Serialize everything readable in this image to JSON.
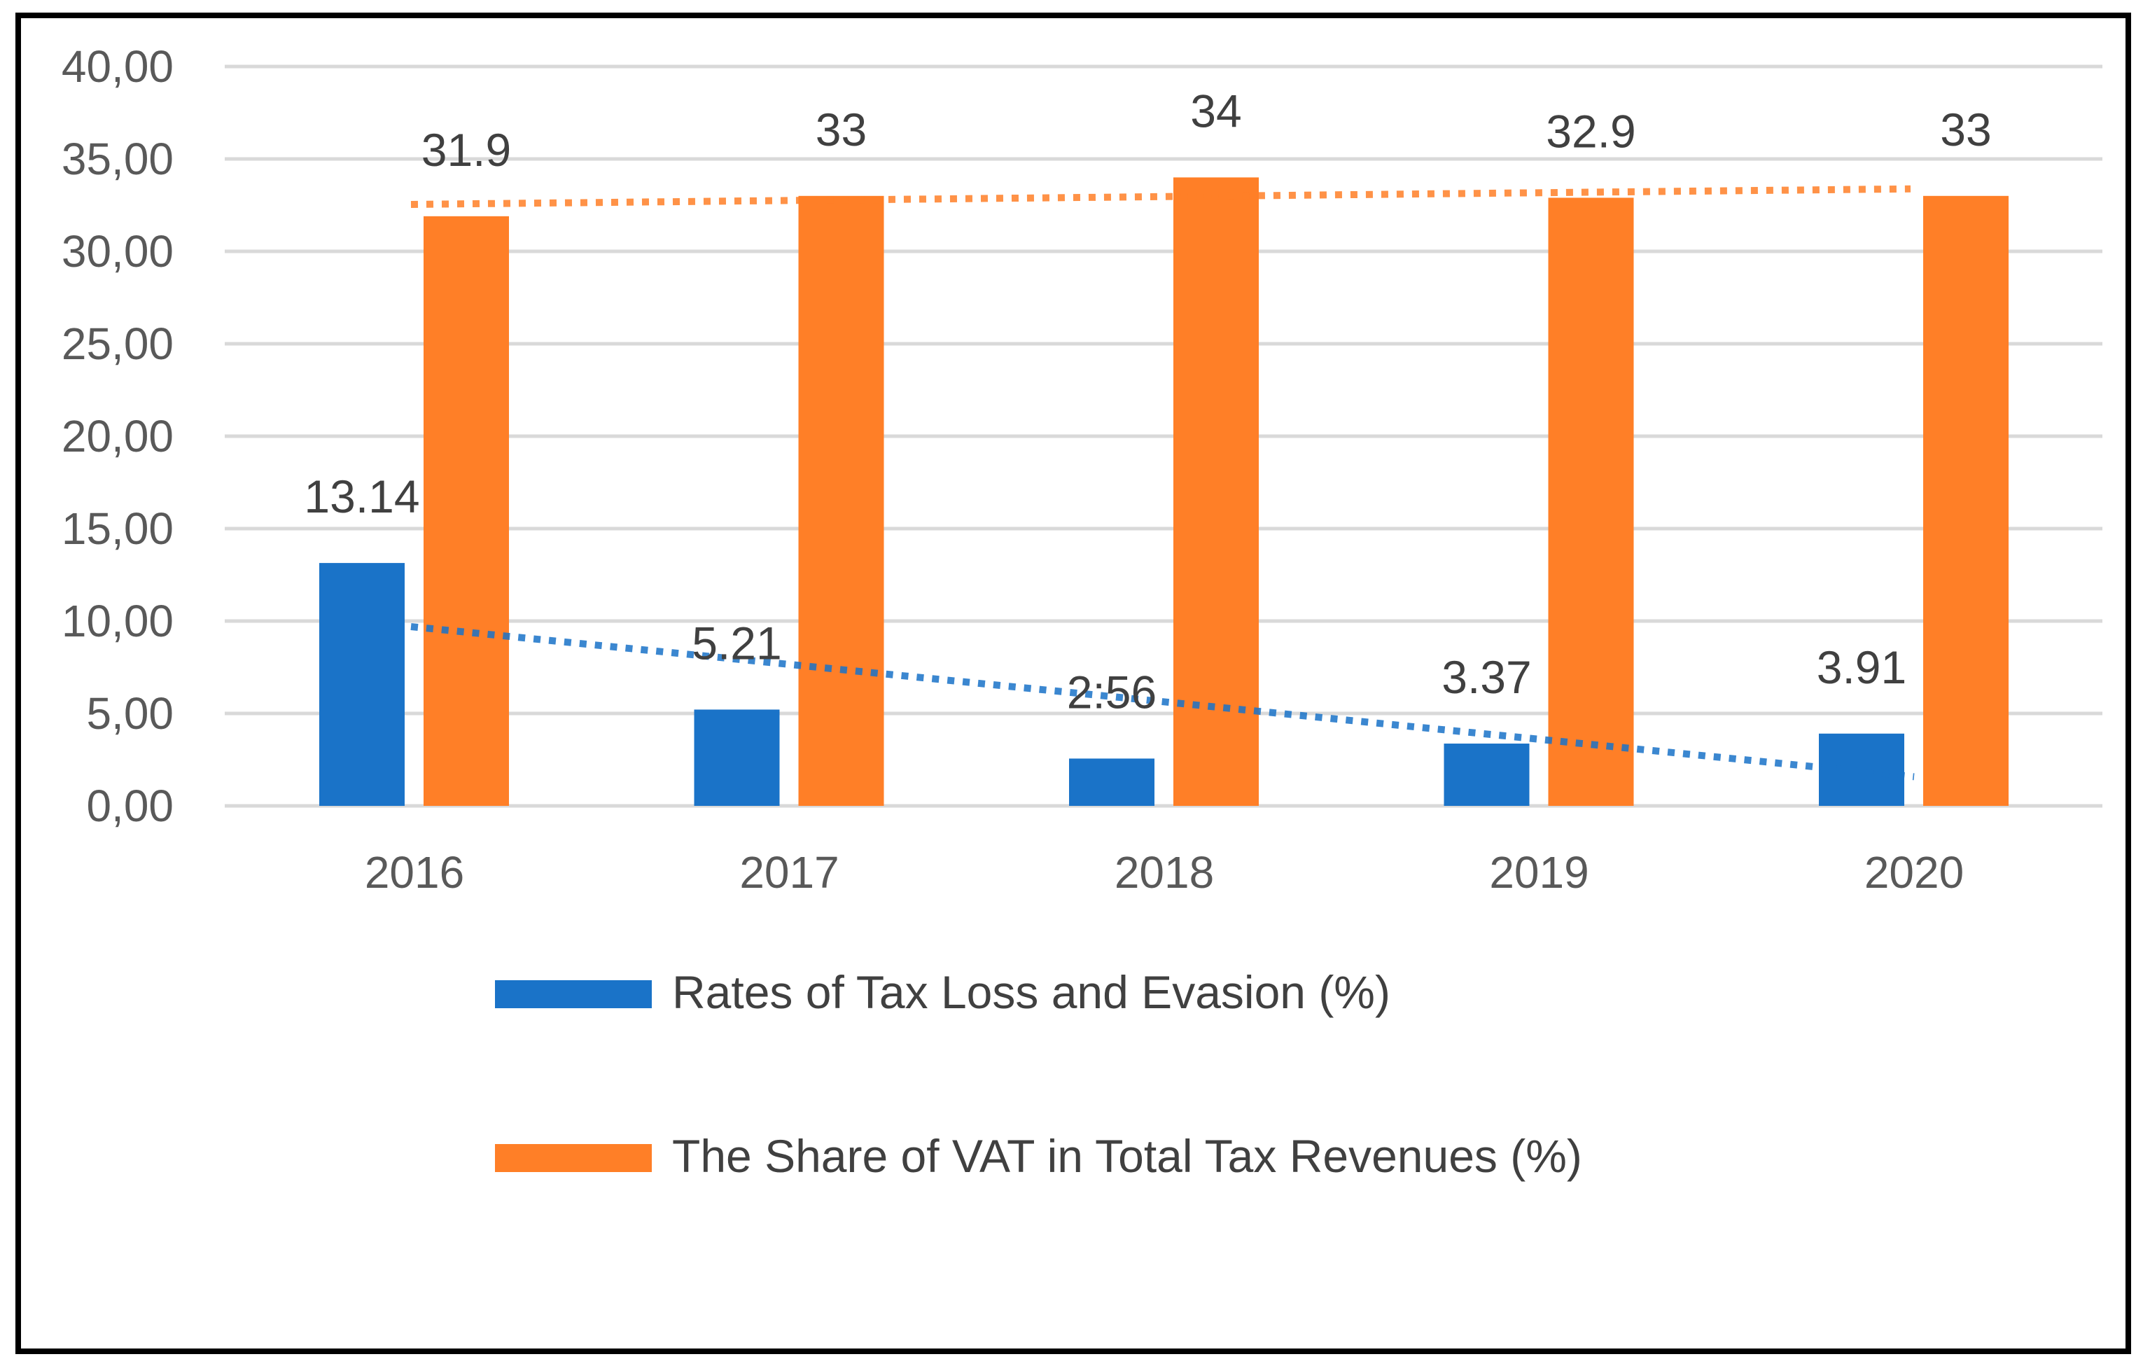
{
  "chart_data": {
    "type": "bar",
    "title": "",
    "xlabel": "",
    "ylabel": "",
    "categories": [
      "2016",
      "2017",
      "2018",
      "2019",
      "2020"
    ],
    "ylim": [
      0,
      40
    ],
    "yticks": [
      "0,00",
      "5,00",
      "10,00",
      "15,00",
      "20,00",
      "25,00",
      "30,00",
      "35,00",
      "40,00"
    ],
    "grid": true,
    "legend_position": "bottom",
    "series": [
      {
        "name": "Rates of Tax Loss and Evasion (%)",
        "color": "#1A73C8",
        "values": [
          13.14,
          5.21,
          2.56,
          3.37,
          3.91
        ],
        "labels": [
          "13.14",
          "5.21",
          "2:56",
          "3.37",
          "3.91"
        ],
        "trendline": "linear-dotted"
      },
      {
        "name": "The Share of VAT in Total Tax Revenues (%)",
        "color": "#FF7F27",
        "values": [
          31.9,
          33,
          34,
          32.9,
          33
        ],
        "labels": [
          "31.9",
          "33",
          "34",
          "32.9",
          "33"
        ],
        "trendline": "linear-dotted"
      }
    ]
  }
}
